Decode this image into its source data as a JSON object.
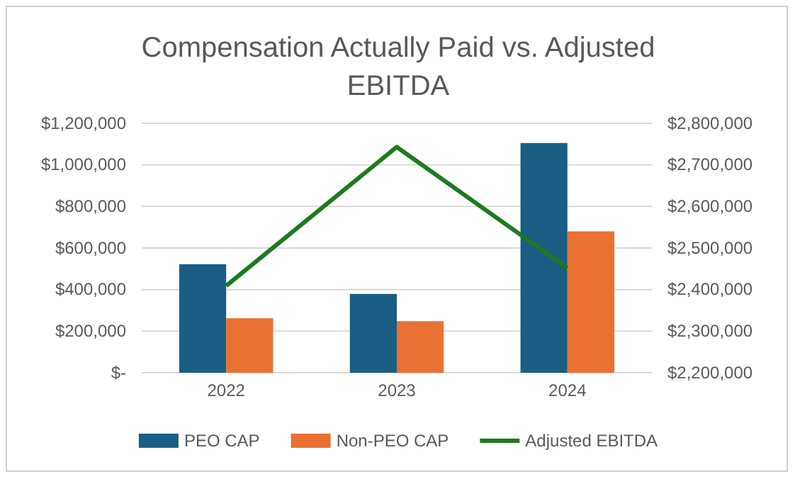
{
  "chart_data": {
    "type": "bar",
    "title": "Compensation Actually Paid vs. Adjusted EBITDA",
    "categories": [
      "2022",
      "2023",
      "2024"
    ],
    "series": [
      {
        "name": "PEO CAP",
        "color": "#1a5e85",
        "values": [
          522000,
          379000,
          1105000
        ]
      },
      {
        "name": "Non-PEO CAP",
        "color": "#e97132",
        "values": [
          262000,
          248000,
          680000
        ]
      },
      {
        "name": "Adjusted EBITDA",
        "type": "line",
        "axis": "y2",
        "color": "#1e7a1e",
        "values": [
          2409000,
          2743000,
          2452000
        ]
      }
    ],
    "ylim": [
      0,
      1200000
    ],
    "yticks": [
      {
        "value": 0,
        "label": "$-"
      },
      {
        "value": 200000,
        "label": "$200,000"
      },
      {
        "value": 400000,
        "label": "$400,000"
      },
      {
        "value": 600000,
        "label": "$600,000"
      },
      {
        "value": 800000,
        "label": "$800,000"
      },
      {
        "value": 1000000,
        "label": "$1,000,000"
      },
      {
        "value": 1200000,
        "label": "$1,200,000"
      }
    ],
    "y2lim": [
      2200000,
      2800000
    ],
    "y2ticks": [
      {
        "value": 2200000,
        "label": "$2,200,000"
      },
      {
        "value": 2300000,
        "label": "$2,300,000"
      },
      {
        "value": 2400000,
        "label": "$2,400,000"
      },
      {
        "value": 2500000,
        "label": "$2,500,000"
      },
      {
        "value": 2600000,
        "label": "$2,600,000"
      },
      {
        "value": 2700000,
        "label": "$2,700,000"
      },
      {
        "value": 2800000,
        "label": "$2,800,000"
      }
    ],
    "grid": "y",
    "legend": "bottom",
    "marker": "none",
    "line_style": "solid"
  }
}
